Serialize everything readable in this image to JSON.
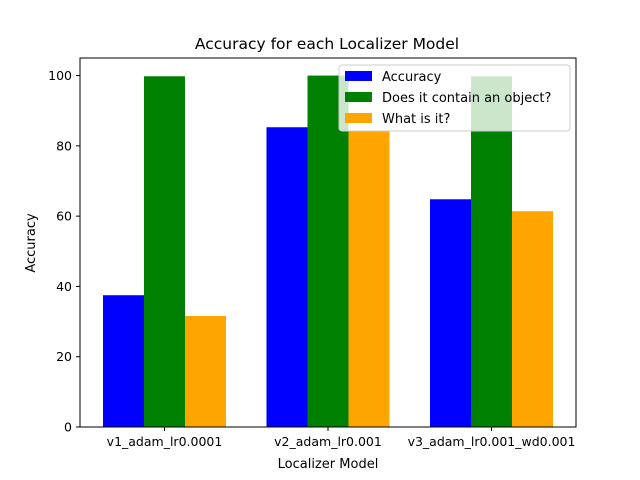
{
  "chart_data": {
    "type": "bar",
    "title": "Accuracy for each Localizer Model",
    "xlabel": "Localizer Model",
    "ylabel": "Accuracy",
    "categories": [
      "v1_adam_lr0.0001",
      "v2_adam_lr0.001",
      "v3_adam_lr0.001_wd0.001"
    ],
    "series": [
      {
        "name": "Accuracy",
        "color": "#0000ff",
        "values": [
          37.5,
          85.3,
          64.8
        ]
      },
      {
        "name": "Does it contain an object?",
        "color": "#008000",
        "values": [
          99.8,
          100.0,
          99.8
        ]
      },
      {
        "name": "What is it?",
        "color": "#ffa500",
        "values": [
          31.6,
          84.3,
          61.4
        ]
      }
    ],
    "ylim": [
      0,
      105
    ],
    "yticks": [
      0,
      20,
      40,
      60,
      80,
      100
    ],
    "grid": false,
    "legend": "top-right"
  }
}
